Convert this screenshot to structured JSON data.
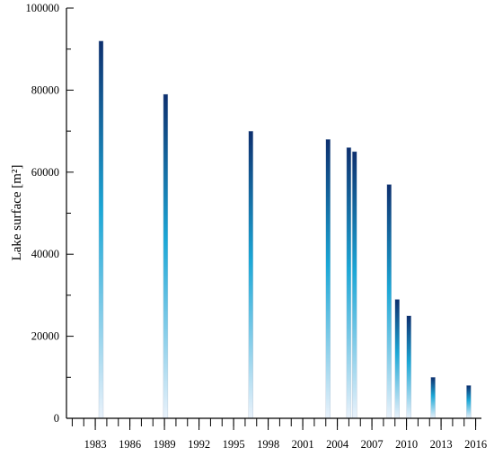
{
  "chart_data": {
    "type": "bar",
    "title": "",
    "xlabel": "",
    "ylabel": "Lake surface [m²]",
    "ylim": [
      0,
      100000
    ],
    "xlim": [
      1980.5,
      2016.5
    ],
    "grid": false,
    "legend": "none",
    "y_ticks": [
      0,
      20000,
      40000,
      60000,
      80000,
      100000
    ],
    "x_ticks": [
      1983,
      1986,
      1989,
      1992,
      1995,
      1998,
      2001,
      2004,
      2007,
      2010,
      2013,
      2016
    ],
    "x": [
      1983.5,
      1989.1,
      1996.5,
      2003.2,
      2005.0,
      2005.5,
      2008.5,
      2009.2,
      2010.2,
      2012.3,
      2015.4
    ],
    "values": [
      92000,
      79000,
      70000,
      68000,
      66000,
      65000,
      57000,
      29000,
      25000,
      10000,
      8000
    ],
    "colors": {
      "bar_top": "#0d2f6e",
      "bar_mid": "#1ba7d6",
      "bar_bottom": "#eaf2fb",
      "axis": "#000000"
    }
  }
}
